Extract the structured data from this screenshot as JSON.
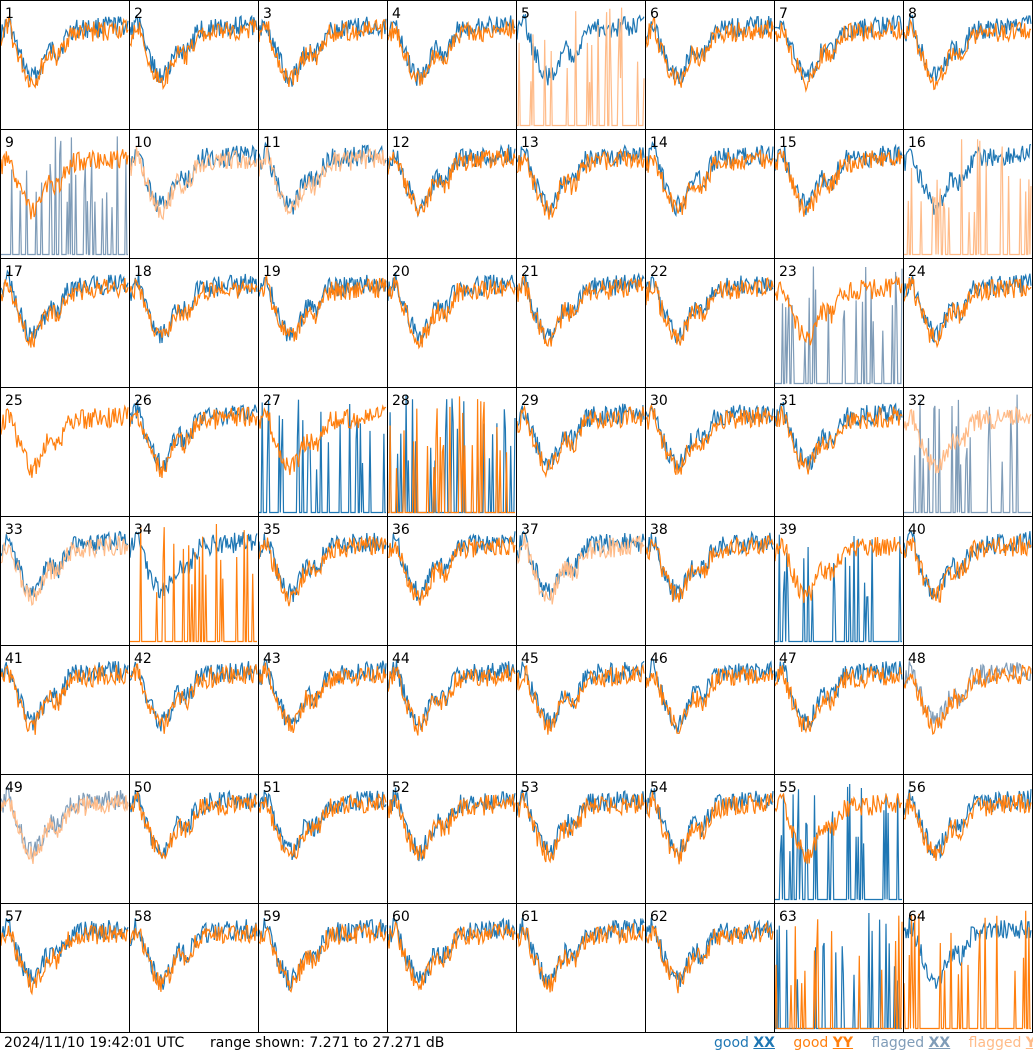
{
  "chart_data": {
    "type": "line",
    "panel_labels": [
      "1",
      "2",
      "3",
      "4",
      "5",
      "6",
      "7",
      "8",
      "9",
      "10",
      "11",
      "12",
      "13",
      "14",
      "15",
      "16",
      "17",
      "18",
      "19",
      "20",
      "21",
      "22",
      "23",
      "24",
      "25",
      "26",
      "27",
      "28",
      "29",
      "30",
      "31",
      "32",
      "33",
      "34",
      "35",
      "36",
      "37",
      "38",
      "39",
      "40",
      "41",
      "42",
      "43",
      "44",
      "45",
      "46",
      "47",
      "48",
      "49",
      "50",
      "51",
      "52",
      "53",
      "54",
      "55",
      "56",
      "57",
      "58",
      "59",
      "60",
      "61",
      "62",
      "63",
      "64"
    ],
    "series_legend": [
      {
        "name": "good XX",
        "color": "#1f77b4"
      },
      {
        "name": "good YY",
        "color": "#ff7f0e"
      },
      {
        "name": "flagged XX",
        "color": "#7f9cb8"
      },
      {
        "name": "flagged YY",
        "color": "#ffbb88"
      }
    ],
    "ylim": [
      7.271,
      27.271
    ],
    "panel_status": {
      "flagged_xx": [
        9,
        23,
        32,
        48,
        49
      ],
      "flagged_yy": [
        5,
        10,
        11,
        16,
        32,
        33,
        37,
        49
      ],
      "spiky_xx": [
        9,
        23,
        25,
        27,
        28,
        32,
        39,
        55,
        63
      ],
      "spiky_yy": [
        5,
        16,
        28,
        34,
        63,
        64
      ],
      "yy_only": [
        25
      ],
      "xx_only": []
    }
  },
  "footer": {
    "timestamp": "2024/11/10 19:42:01 UTC",
    "range_text": "range shown: 7.271 to 27.271 dB",
    "legend": [
      {
        "text": "good XX",
        "prefix": "good ",
        "suffix": "XX",
        "color": "#1f77b4"
      },
      {
        "text": "good YY",
        "prefix": "good ",
        "suffix": "YY",
        "color": "#ff7f0e"
      },
      {
        "text": "flagged XX",
        "prefix": "flagged ",
        "suffix": "XX",
        "color": "#7f9cb8"
      },
      {
        "text": "flagged YY",
        "prefix": "flagged ",
        "suffix": "YY",
        "color": "#ffbb88"
      }
    ]
  }
}
